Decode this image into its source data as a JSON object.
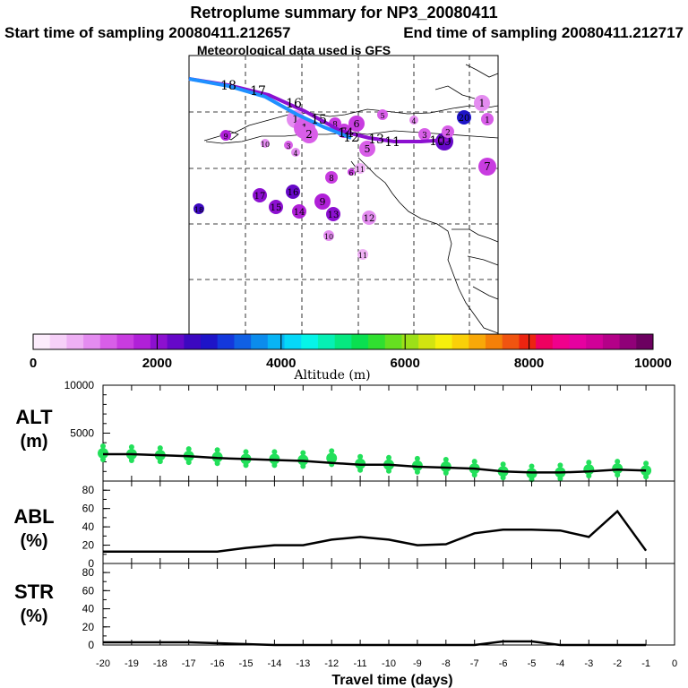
{
  "header": {
    "title": "Retroplume summary for NP3_20080411",
    "start_label": "Start time of sampling 20080411.212657",
    "end_label": "End time of sampling 20080411.212717",
    "met_label": "Meteorological data used is GFS"
  },
  "colorbar": {
    "label": "Altitude (m)",
    "ticks": [
      "0",
      "2000",
      "4000",
      "6000",
      "8000",
      "10000"
    ],
    "min": 0,
    "max": 10000,
    "colors": [
      "#fcecfc",
      "#f6d0f8",
      "#eeb0f4",
      "#e48cf0",
      "#d85ee8",
      "#c83ce0",
      "#b020d8",
      "#8c10d0",
      "#6608c8",
      "#3c08c0",
      "#1e14c8",
      "#1438dc",
      "#1060e4",
      "#0c8cec",
      "#08b4f4",
      "#06d8f8",
      "#06f4e8",
      "#06f0b4",
      "#06e880",
      "#0ae050",
      "#30e030",
      "#66e020",
      "#9ce018",
      "#d2e410",
      "#f6f00c",
      "#fad008",
      "#f8a808",
      "#f48008",
      "#f05410",
      "#ec2410",
      "#ee0060",
      "#f0008c",
      "#e600a0",
      "#d00098",
      "#b40088",
      "#900078",
      "#6c0060"
    ]
  },
  "map": {
    "trajectory_labels": [
      "18",
      "17",
      "16",
      "15",
      "14",
      "13",
      "12",
      "11",
      "10"
    ],
    "clusters": [
      {
        "label": "1",
        "alt": 1000
      },
      {
        "label": "1",
        "alt": 1100
      },
      {
        "label": "2",
        "alt": 1300
      },
      {
        "label": "3",
        "alt": 1200
      },
      {
        "label": "4",
        "alt": 1000
      },
      {
        "label": "5",
        "alt": 1100
      },
      {
        "label": "6",
        "alt": 1400
      },
      {
        "label": "7",
        "alt": 1500
      },
      {
        "label": "8",
        "alt": 1600
      },
      {
        "label": "9",
        "alt": 1700
      },
      {
        "label": "10",
        "alt": 1000
      },
      {
        "label": "11",
        "alt": 700
      },
      {
        "label": "12",
        "alt": 900
      },
      {
        "label": "13",
        "alt": 1900
      },
      {
        "label": "14",
        "alt": 1800
      },
      {
        "label": "15",
        "alt": 2100
      },
      {
        "label": "16",
        "alt": 2300
      },
      {
        "label": "17",
        "alt": 2100
      },
      {
        "label": "18",
        "alt": 2600
      },
      {
        "label": "19",
        "alt": 2300
      },
      {
        "label": "20",
        "alt": 2900
      }
    ]
  },
  "chart_data": [
    {
      "type": "line",
      "panel": "ALT",
      "ylabel": "ALT (m)",
      "ylim": [
        0,
        10000
      ],
      "yticks": [
        "10000",
        "5000"
      ],
      "x": [
        -20,
        -19,
        -18,
        -17,
        -16,
        -15,
        -14,
        -13,
        -12,
        -11,
        -10,
        -9,
        -8,
        -7,
        -6,
        -5,
        -4,
        -3,
        -2,
        -1
      ],
      "series": [
        {
          "name": "mean altitude",
          "values": [
            2800,
            2800,
            2700,
            2600,
            2400,
            2300,
            2200,
            2100,
            1900,
            1700,
            1700,
            1500,
            1400,
            1300,
            1000,
            900,
            900,
            1000,
            1200,
            1100
          ]
        },
        {
          "name": "cluster altitudes",
          "marker": "circle",
          "values": [
            2900,
            2800,
            2700,
            2600,
            2500,
            2300,
            2300,
            2200,
            2400,
            1800,
            1700,
            1600,
            1500,
            1300,
            1000,
            800,
            900,
            1200,
            1300,
            1100
          ]
        }
      ]
    },
    {
      "type": "line",
      "panel": "ABL",
      "ylabel": "ABL (%)",
      "ylim": [
        0,
        90
      ],
      "yticks": [
        "80",
        "60",
        "40",
        "20",
        "0"
      ],
      "x": [
        -20,
        -19,
        -18,
        -17,
        -16,
        -15,
        -14,
        -13,
        -12,
        -11,
        -10,
        -9,
        -8,
        -7,
        -6,
        -5,
        -4,
        -3,
        -2,
        -1
      ],
      "series": [
        {
          "name": "ABL fraction",
          "values": [
            13,
            13,
            13,
            13,
            13,
            17,
            20,
            20,
            26,
            29,
            26,
            20,
            21,
            33,
            37,
            37,
            36,
            29,
            57,
            14
          ]
        }
      ]
    },
    {
      "type": "line",
      "panel": "STR",
      "ylabel": "STR (%)",
      "ylim": [
        0,
        90
      ],
      "yticks": [
        "80",
        "60",
        "40",
        "20",
        "0"
      ],
      "x": [
        -20,
        -19,
        -18,
        -17,
        -16,
        -15,
        -14,
        -13,
        -12,
        -11,
        -10,
        -9,
        -8,
        -7,
        -6,
        -5,
        -4,
        -3,
        -2,
        -1
      ],
      "xlabel": "Travel time (days)",
      "xticks": [
        "-20",
        "-19",
        "-18",
        "-17",
        "-16",
        "-15",
        "-14",
        "-13",
        "-12",
        "-11",
        "-10",
        "-9",
        "-8",
        "-7",
        "-6",
        "-5",
        "-4",
        "-3",
        "-2",
        "-1",
        "0"
      ],
      "series": [
        {
          "name": "stratosphere fraction",
          "values": [
            3,
            3,
            3,
            3,
            2,
            1,
            0,
            0,
            0,
            0,
            0,
            0,
            0,
            0,
            4,
            4,
            0,
            0,
            0,
            0
          ]
        }
      ]
    }
  ]
}
